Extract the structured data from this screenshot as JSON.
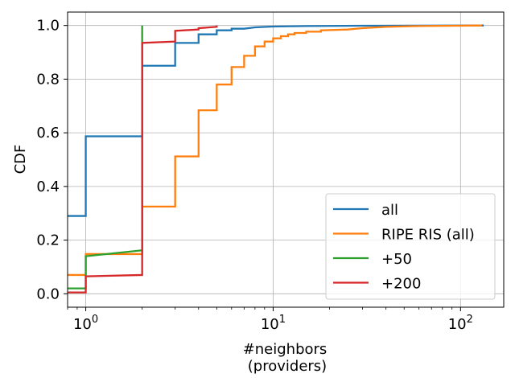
{
  "chart_data": {
    "type": "line",
    "title": "",
    "xlabel_line1": "#neighbors",
    "xlabel_line2": "(providers)",
    "ylabel": "CDF",
    "xscale": "log",
    "xlim": [
      0.8,
      170
    ],
    "ylim": [
      -0.05,
      1.05
    ],
    "grid": true,
    "legend_position": "lower-right",
    "x_tick_labels": [
      {
        "value": 1,
        "base": "10",
        "exp": "0"
      },
      {
        "value": 10,
        "base": "10",
        "exp": "1"
      },
      {
        "value": 100,
        "base": "10",
        "exp": "2"
      }
    ],
    "y_tick_labels": [
      "0.0",
      "0.2",
      "0.4",
      "0.6",
      "0.8",
      "1.0"
    ],
    "y_tick_values": [
      0.0,
      0.2,
      0.4,
      0.6,
      0.8,
      1.0
    ],
    "series": [
      {
        "name": "all",
        "color": "#1f77b4",
        "points": [
          [
            0.8,
            0.29
          ],
          [
            1,
            0.29
          ],
          [
            1,
            0.587
          ],
          [
            2,
            0.587
          ],
          [
            2,
            0.85
          ],
          [
            3,
            0.85
          ],
          [
            3,
            0.935
          ],
          [
            4,
            0.935
          ],
          [
            4,
            0.967
          ],
          [
            5,
            0.967
          ],
          [
            5,
            0.982
          ],
          [
            6,
            0.982
          ],
          [
            6,
            0.988
          ],
          [
            7,
            0.988
          ],
          [
            8,
            0.993
          ],
          [
            10,
            0.996
          ],
          [
            15,
            0.998
          ],
          [
            30,
            0.999
          ],
          [
            133,
            1.0
          ]
        ]
      },
      {
        "name": "RIPE RIS (all)",
        "color": "#ff7f0e",
        "points": [
          [
            0.8,
            0.07
          ],
          [
            1,
            0.07
          ],
          [
            1,
            0.148
          ],
          [
            2,
            0.148
          ],
          [
            2,
            0.325
          ],
          [
            3,
            0.325
          ],
          [
            3,
            0.512
          ],
          [
            4,
            0.512
          ],
          [
            4,
            0.684
          ],
          [
            5,
            0.684
          ],
          [
            5,
            0.78
          ],
          [
            6,
            0.78
          ],
          [
            6,
            0.845
          ],
          [
            7,
            0.845
          ],
          [
            7,
            0.887
          ],
          [
            8,
            0.887
          ],
          [
            8,
            0.922
          ],
          [
            9,
            0.922
          ],
          [
            9,
            0.94
          ],
          [
            10,
            0.94
          ],
          [
            10,
            0.952
          ],
          [
            11,
            0.952
          ],
          [
            11,
            0.96
          ],
          [
            12,
            0.96
          ],
          [
            12,
            0.967
          ],
          [
            13,
            0.967
          ],
          [
            13,
            0.972
          ],
          [
            15,
            0.972
          ],
          [
            15,
            0.977
          ],
          [
            18,
            0.977
          ],
          [
            18,
            0.982
          ],
          [
            25,
            0.985
          ],
          [
            30,
            0.99
          ],
          [
            40,
            0.995
          ],
          [
            60,
            0.998
          ],
          [
            130,
            1.0
          ]
        ]
      },
      {
        "name": "+50",
        "color": "#2ca02c",
        "points": [
          [
            0.8,
            0.02
          ],
          [
            1,
            0.02
          ],
          [
            1,
            0.14
          ],
          [
            2,
            0.162
          ],
          [
            2,
            1.0
          ]
        ]
      },
      {
        "name": "+200",
        "color": "#d62728",
        "points": [
          [
            0.8,
            0.005
          ],
          [
            1,
            0.005
          ],
          [
            1,
            0.065
          ],
          [
            2,
            0.07
          ],
          [
            2,
            0.935
          ],
          [
            3,
            0.94
          ],
          [
            3,
            0.98
          ],
          [
            4,
            0.985
          ],
          [
            4,
            0.99
          ],
          [
            5,
            0.995
          ],
          [
            5,
            1.0
          ]
        ]
      }
    ]
  }
}
